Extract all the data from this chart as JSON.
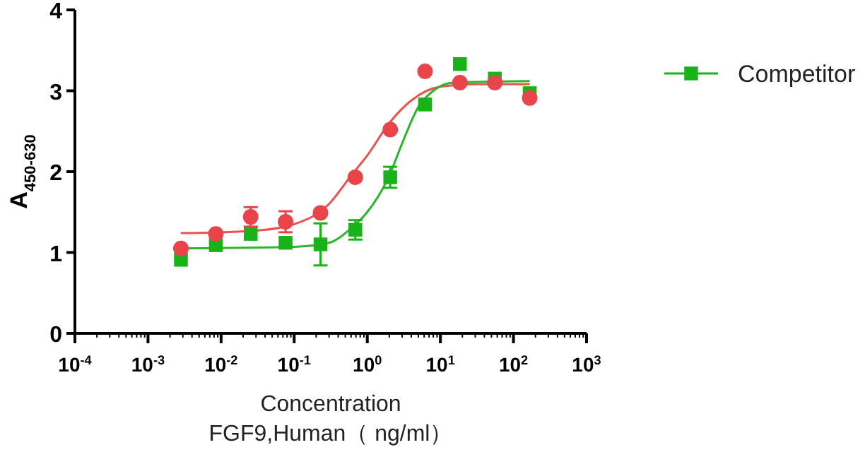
{
  "chart_data": {
    "type": "scatter",
    "xlabel": "Concentration\nFGF9,Human（ ng/ml）",
    "ylabel": "A$_{450-630}$",
    "log": "x",
    "xlim": [
      0.0001,
      1000
    ],
    "xticks": [
      {
        "value": 0.0001,
        "label": "10$^{-4}$"
      },
      {
        "value": 0.001,
        "label": "10$^{-3}$"
      },
      {
        "value": 0.01,
        "label": "10$^{-2}$"
      },
      {
        "value": 0.1,
        "label": "10$^{-1}$"
      },
      {
        "value": 1,
        "label": "10$^{0}$"
      },
      {
        "value": 10,
        "label": "10$^{1}$"
      },
      {
        "value": 100,
        "label": "10$^{2}$"
      },
      {
        "value": 1000,
        "label": "10$^{3}$"
      }
    ],
    "ylim": [
      0,
      4
    ],
    "yticks": [
      0,
      1,
      2,
      3,
      4
    ],
    "grid": false,
    "legend": "top right",
    "series": [
      {
        "type": "line",
        "color": "#e8534f",
        "marker": "none",
        "x": [
          0.0028,
          0.01,
          0.03,
          0.1,
          0.3,
          0.6,
          1,
          2,
          4,
          10,
          30,
          167
        ],
        "values": [
          1.24,
          1.25,
          1.27,
          1.35,
          1.6,
          1.95,
          2.2,
          2.6,
          2.88,
          3.05,
          3.08,
          3.08
        ]
      },
      {
        "type": "line",
        "color": "#2db52d",
        "marker": "none",
        "x": [
          0.0028,
          0.1,
          0.3,
          0.6,
          1,
          2,
          3,
          5,
          8,
          15,
          167
        ],
        "values": [
          1.05,
          1.07,
          1.12,
          1.3,
          1.5,
          1.95,
          2.35,
          2.8,
          3.0,
          3.1,
          3.12
        ]
      },
      {
        "name": "Competitor",
        "color": "#19b219",
        "marker": "square",
        "x": [
          0.00282,
          0.00847,
          0.0254,
          0.0762,
          0.229,
          0.686,
          2.06,
          6.17,
          18.5,
          55.6,
          166.7
        ],
        "values": [
          0.91,
          1.09,
          1.23,
          1.12,
          1.1,
          1.28,
          1.93,
          2.83,
          3.33,
          3.15,
          2.97
        ],
        "errors": [
          null,
          null,
          null,
          null,
          0.26,
          0.12,
          0.13,
          null,
          null,
          null,
          null
        ]
      },
      {
        "color": "#e8444a",
        "marker": "circle",
        "x": [
          0.00282,
          0.00847,
          0.0254,
          0.0762,
          0.229,
          0.686,
          2.06,
          6.17,
          18.5,
          55.6,
          166.7
        ],
        "values": [
          1.05,
          1.23,
          1.44,
          1.38,
          1.49,
          1.93,
          2.52,
          3.24,
          3.1,
          3.1,
          2.91
        ],
        "errors": [
          null,
          null,
          0.12,
          0.13,
          null,
          null,
          null,
          null,
          null,
          null,
          null
        ]
      }
    ]
  }
}
